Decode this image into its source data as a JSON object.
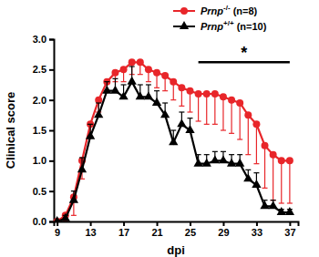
{
  "chart_data": {
    "type": "line",
    "x_label": "dpi",
    "y_label": "Clinical score",
    "x": [
      9,
      10,
      11,
      12,
      13,
      14,
      15,
      16,
      17,
      18,
      19,
      20,
      21,
      22,
      23,
      24,
      25,
      26,
      27,
      28,
      29,
      30,
      31,
      32,
      33,
      34,
      35,
      36,
      37
    ],
    "xlim": [
      8.6,
      38
    ],
    "xticks": [
      9,
      13,
      17,
      21,
      25,
      29,
      33,
      37
    ],
    "ylim": [
      0,
      3.0
    ],
    "yticks": [
      {
        "value": 0,
        "label": "0.0"
      },
      0.5,
      {
        "value": 1,
        "label": "1.0"
      },
      1.5,
      {
        "value": 2,
        "label": "2.0"
      },
      2.5,
      {
        "value": 3,
        "label": "3.0"
      }
    ],
    "legend": "top-right",
    "series": [
      {
        "name": "Prnp-/- (n=8)",
        "color": "#e8262a",
        "marker": "circle",
        "values": [
          0.0,
          0.1,
          0.4,
          1.0,
          1.6,
          2.0,
          2.3,
          2.45,
          2.5,
          2.62,
          2.62,
          2.5,
          2.45,
          2.4,
          2.3,
          2.2,
          2.15,
          2.1,
          2.1,
          2.1,
          2.05,
          2.0,
          1.95,
          1.75,
          1.6,
          1.25,
          1.1,
          1.0,
          1.0
        ],
        "errors": [
          0.0,
          0.1,
          0.3,
          0.3,
          0.2,
          0.2,
          0.15,
          0.15,
          0.2,
          0.2,
          0.2,
          0.2,
          0.25,
          0.25,
          0.3,
          0.3,
          0.35,
          0.45,
          0.5,
          0.5,
          0.55,
          0.55,
          0.6,
          0.65,
          0.65,
          0.7,
          0.75,
          0.7,
          0.7
        ]
      },
      {
        "name": "Prnp+/+ (n=10)",
        "color": "#000000",
        "marker": "triangle",
        "values": [
          0.0,
          0.05,
          0.35,
          0.85,
          1.4,
          1.75,
          2.15,
          2.15,
          2.05,
          2.3,
          2.05,
          2.05,
          1.95,
          1.75,
          1.3,
          1.6,
          1.5,
          0.95,
          0.95,
          1.0,
          1.0,
          0.95,
          0.95,
          0.7,
          0.6,
          0.25,
          0.25,
          0.15,
          0.15
        ],
        "errors": [
          0.0,
          0.05,
          0.15,
          0.2,
          0.2,
          0.2,
          0.15,
          0.2,
          0.2,
          0.25,
          0.2,
          0.2,
          0.2,
          0.2,
          0.2,
          0.2,
          0.2,
          0.15,
          0.15,
          0.15,
          0.15,
          0.15,
          0.15,
          0.15,
          0.2,
          0.1,
          0.1,
          0.05,
          0.05
        ]
      }
    ],
    "annotations": [
      {
        "text": "*",
        "x_start": 26,
        "x_end": 37,
        "y": 2.62
      }
    ]
  }
}
